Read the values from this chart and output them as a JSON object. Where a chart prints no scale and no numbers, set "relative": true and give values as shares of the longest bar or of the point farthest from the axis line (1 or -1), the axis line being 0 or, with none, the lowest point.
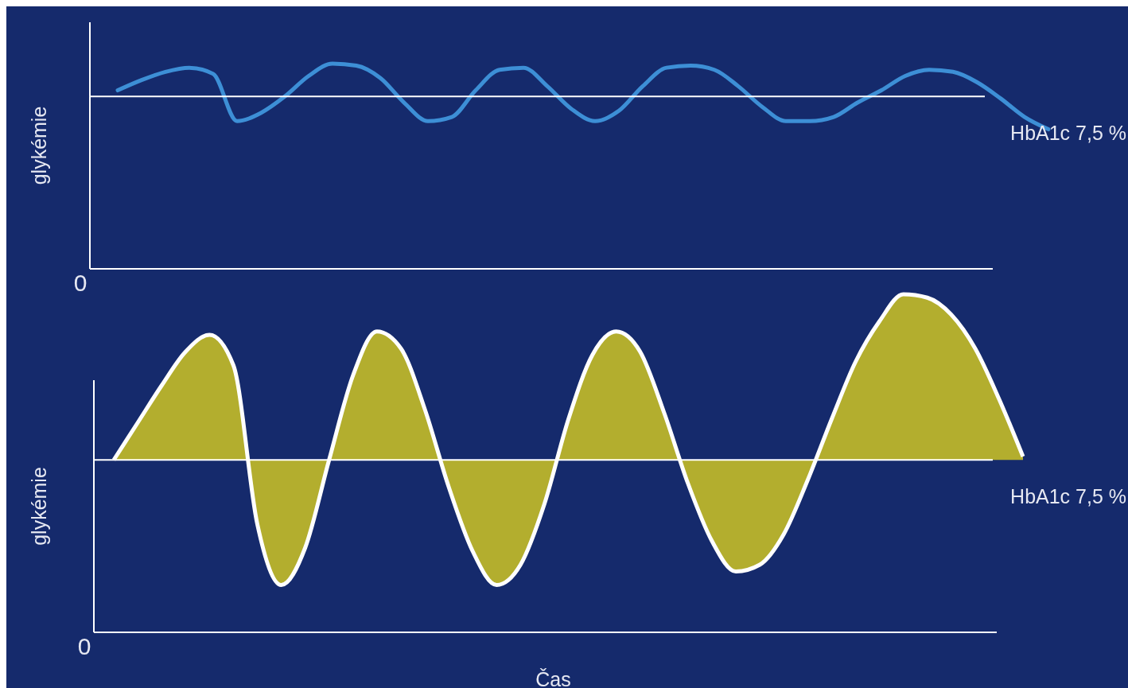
{
  "chart_data": [
    {
      "type": "line",
      "relative": true,
      "ylabel": "glykémie",
      "annotations": [
        "0"
      ],
      "categories": [
        null,
        null,
        null,
        null,
        null,
        null,
        null,
        null,
        null,
        null,
        null,
        null,
        null,
        null,
        null,
        null,
        null,
        null,
        null,
        null,
        null,
        null,
        null,
        null,
        null,
        null,
        null,
        null,
        null,
        null,
        null,
        null,
        null,
        null,
        null,
        null,
        null,
        null,
        null,
        null
      ],
      "series": [
        {
          "color": "#3d8fd6",
          "values": [
            0.87,
            0.92,
            0.96,
            0.98,
            0.95,
            0.72,
            0.76,
            0.84,
            0.94,
            1,
            0.99,
            0.93,
            0.81,
            0.72,
            0.74,
            0.87,
            0.97,
            0.98,
            0.89,
            0.78,
            0.72,
            0.77,
            0.89,
            0.98,
            0.99,
            0.97,
            0.89,
            0.79,
            0.72,
            0.72,
            0.74,
            0.81,
            0.87,
            0.94,
            0.97,
            0.96,
            0.91,
            0.83,
            0.74,
            0.68
          ]
        }
      ],
      "ref_lines": [
        {
          "axis": "y",
          "value": 0.84,
          "label": "HbA1c 7,5 %",
          "color": "#ffffff"
        }
      ]
    },
    {
      "type": "area",
      "relative": true,
      "ylabel": "glykémie",
      "xlabel": "Čas",
      "annotations": [
        "0"
      ],
      "categories": [
        null,
        null,
        null,
        null,
        null,
        null,
        null,
        null,
        null,
        null,
        null,
        null,
        null,
        null,
        null,
        null,
        null,
        null,
        null,
        null,
        null,
        null,
        null,
        null,
        null,
        null,
        null,
        null,
        null,
        null,
        null,
        null,
        null,
        null,
        null,
        null,
        null,
        null,
        null
      ],
      "series": [
        {
          "color": "#b3ae2e",
          "values": [
            0.51,
            0.62,
            0.73,
            0.83,
            0.88,
            0.79,
            0.32,
            0.14,
            0.25,
            0.51,
            0.76,
            0.89,
            0.84,
            0.66,
            0.43,
            0.24,
            0.14,
            0.2,
            0.38,
            0.63,
            0.82,
            0.89,
            0.83,
            0.65,
            0.44,
            0.27,
            0.18,
            0.2,
            0.29,
            0.45,
            0.63,
            0.8,
            0.92,
            1,
            0.99,
            0.94,
            0.84,
            0.69,
            0.52
          ]
        }
      ],
      "ref_lines": [
        {
          "axis": "y",
          "value": 0.51,
          "label": "HbA1c 7,5 %",
          "color": "#ffffff"
        }
      ]
    }
  ]
}
